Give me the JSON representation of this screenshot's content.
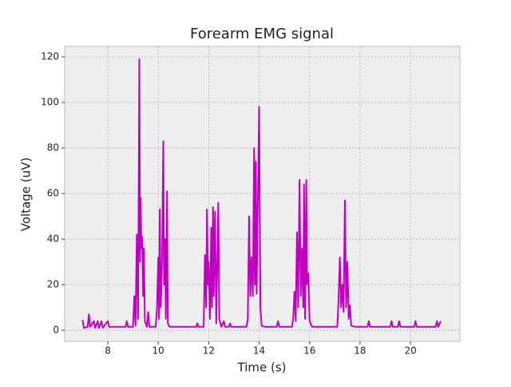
{
  "chart_data": {
    "type": "line",
    "title": "Forearm EMG signal",
    "xlabel": "Time (s)",
    "ylabel": "Voltage (uV)",
    "x": [
      7.0,
      7.05,
      7.2,
      7.25,
      7.3,
      7.45,
      7.5,
      7.6,
      7.65,
      7.75,
      7.8,
      8.0,
      8.05,
      8.3,
      8.7,
      8.75,
      8.8,
      9.0,
      9.05,
      9.1,
      9.15,
      9.2,
      9.25,
      9.28,
      9.3,
      9.33,
      9.36,
      9.4,
      9.43,
      9.47,
      9.55,
      9.6,
      9.65,
      9.9,
      9.95,
      10.0,
      10.03,
      10.06,
      10.1,
      10.15,
      10.2,
      10.23,
      10.27,
      10.3,
      10.35,
      10.38,
      10.45,
      11.0,
      11.5,
      11.55,
      11.6,
      11.8,
      11.85,
      11.9,
      11.93,
      11.97,
      12.0,
      12.05,
      12.1,
      12.13,
      12.17,
      12.2,
      12.25,
      12.3,
      12.38,
      12.42,
      12.5,
      12.6,
      12.65,
      12.8,
      12.85,
      12.9,
      13.5,
      13.55,
      13.6,
      13.65,
      13.7,
      13.75,
      13.8,
      13.83,
      13.87,
      13.9,
      14.0,
      14.05,
      14.1,
      14.2,
      14.7,
      14.75,
      14.8,
      15.3,
      15.35,
      15.4,
      15.45,
      15.5,
      15.55,
      15.6,
      15.65,
      15.7,
      15.75,
      15.78,
      15.82,
      15.87,
      15.9,
      15.95,
      16.0,
      16.1,
      16.6,
      17.1,
      17.15,
      17.2,
      17.25,
      17.3,
      17.35,
      17.4,
      17.45,
      17.5,
      17.55,
      17.6,
      17.65,
      17.8,
      18.3,
      18.35,
      18.4,
      19.2,
      19.25,
      19.3,
      19.5,
      19.55,
      19.6,
      20.15,
      20.2,
      20.25,
      21.0,
      21.05,
      21.1,
      21.2
    ],
    "values": [
      4.5,
      1,
      1.5,
      7,
      1.5,
      4,
      1,
      4,
      1,
      4,
      1,
      4,
      1.5,
      1.5,
      1.5,
      4,
      1.5,
      1.5,
      15,
      2,
      42,
      5,
      119,
      30,
      58,
      36,
      41,
      15,
      36,
      4,
      1.5,
      8,
      1.5,
      1.5,
      10,
      32,
      5,
      53,
      10,
      30,
      83,
      20,
      40,
      5,
      61,
      3,
      1.5,
      1.5,
      1.5,
      3,
      1.5,
      1.5,
      33,
      10,
      53,
      20,
      30,
      5,
      45,
      10,
      54,
      15,
      52,
      3,
      56,
      5,
      1.5,
      4,
      1.5,
      1.5,
      3,
      1.5,
      1.5,
      5,
      50,
      15,
      32,
      15,
      80,
      20,
      74,
      16,
      98,
      10,
      2,
      1.5,
      1.5,
      4,
      1.5,
      1.5,
      5,
      17,
      4,
      43,
      10,
      66,
      15,
      36,
      10,
      64,
      5,
      66,
      20,
      25,
      4,
      1.5,
      1.5,
      1.5,
      14,
      32,
      10,
      20,
      8,
      57,
      10,
      30,
      5,
      11,
      2,
      1.5,
      1.5,
      4,
      1.5,
      1.5,
      4,
      1.5,
      1.5,
      4,
      1.5,
      1.5,
      4,
      1.5,
      1.5,
      4,
      1.5,
      4
    ],
    "color": "#bf00bf",
    "xlim": [
      6.29,
      21.96
    ],
    "ylim": [
      -4.9,
      124.6
    ],
    "xticks": [
      8,
      10,
      12,
      14,
      16,
      18,
      20
    ],
    "yticks": [
      0,
      20,
      40,
      60,
      80,
      100,
      120
    ],
    "grid": true
  }
}
